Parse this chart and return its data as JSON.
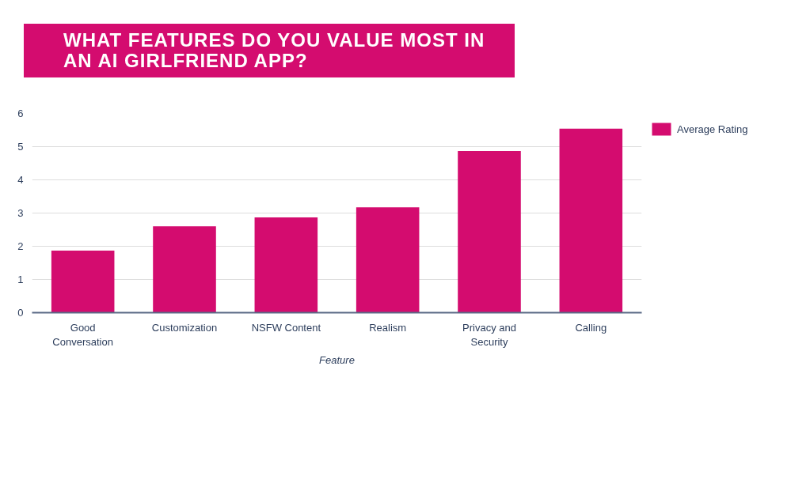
{
  "chart_data": {
    "type": "bar",
    "title": "WHAT FEATURES DO YOU VALUE MOST IN AN AI GIRLFRIEND APP?",
    "xlabel": "Feature",
    "categories": [
      "Good Conversation",
      "Customization",
      "NSFW Content",
      "Realism",
      "Privacy and Security",
      "Calling"
    ],
    "series": [
      {
        "name": "Average Rating",
        "color": "#d40c6f",
        "values": [
          1.87,
          2.6,
          2.87,
          3.17,
          4.87,
          5.54
        ]
      }
    ],
    "ylim": [
      0,
      6
    ],
    "yticks": [
      0,
      1,
      2,
      3,
      4,
      5,
      6
    ],
    "grid": "y",
    "legend": "top right"
  }
}
